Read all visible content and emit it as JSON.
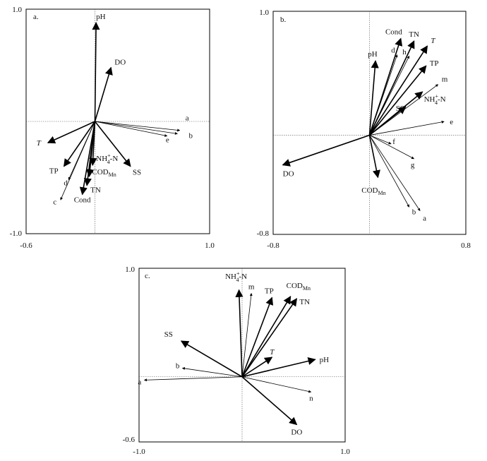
{
  "chart_data": [
    {
      "type": "scatter",
      "title": "a.",
      "xlim": [
        -0.6,
        1.0
      ],
      "ylim": [
        -1.0,
        1.0
      ],
      "x_ticks": [
        "-0.6",
        "1.0"
      ],
      "y_ticks": [
        "1.0",
        "-1.0"
      ],
      "grid": false,
      "vectors": [
        {
          "label": "pH",
          "x": 0.01,
          "y": 0.88,
          "type": "env"
        },
        {
          "label": "DO",
          "x": 0.14,
          "y": 0.48,
          "type": "env"
        },
        {
          "label": "T",
          "x": -0.41,
          "y": -0.19,
          "type": "env",
          "italic": true
        },
        {
          "label": "TP",
          "x": -0.27,
          "y": -0.4,
          "type": "env"
        },
        {
          "label": "Cond",
          "x": -0.11,
          "y": -0.65,
          "type": "env"
        },
        {
          "label": "TN",
          "x": -0.07,
          "y": -0.57,
          "type": "env"
        },
        {
          "label": "CODMn",
          "x": -0.05,
          "y": -0.49,
          "type": "env",
          "sub": "Mn"
        },
        {
          "label": "NH4+-N",
          "x": -0.02,
          "y": -0.39,
          "type": "env"
        },
        {
          "label": "SS",
          "x": 0.31,
          "y": -0.4,
          "type": "env"
        },
        {
          "label": "a",
          "x": 0.74,
          "y": -0.08,
          "type": "species"
        },
        {
          "label": "b",
          "x": 0.72,
          "y": -0.11,
          "type": "species"
        },
        {
          "label": "e",
          "x": 0.63,
          "y": -0.13,
          "type": "species"
        },
        {
          "label": "d",
          "x": -0.23,
          "y": -0.52,
          "type": "species"
        },
        {
          "label": "c",
          "x": -0.3,
          "y": -0.7,
          "type": "species"
        }
      ]
    },
    {
      "type": "scatter",
      "title": "b.",
      "xlim": [
        -0.8,
        0.8
      ],
      "ylim": [
        -0.8,
        1.0
      ],
      "x_ticks": [
        "-0.8",
        "0.8"
      ],
      "y_ticks": [
        "1.0",
        "-0.8"
      ],
      "grid": false,
      "vectors": [
        {
          "label": "Cond",
          "x": 0.26,
          "y": 0.78,
          "type": "env"
        },
        {
          "label": "TN",
          "x": 0.37,
          "y": 0.76,
          "type": "env"
        },
        {
          "label": "T",
          "x": 0.48,
          "y": 0.72,
          "type": "env",
          "italic": true
        },
        {
          "label": "pH",
          "x": 0.05,
          "y": 0.6,
          "type": "env"
        },
        {
          "label": "TP",
          "x": 0.47,
          "y": 0.56,
          "type": "env"
        },
        {
          "label": "NH4+-N",
          "x": 0.44,
          "y": 0.35,
          "type": "env"
        },
        {
          "label": "SS",
          "x": 0.3,
          "y": 0.23,
          "type": "env"
        },
        {
          "label": "DO",
          "x": -0.72,
          "y": -0.24,
          "type": "env"
        },
        {
          "label": "CODMn",
          "x": 0.07,
          "y": -0.34,
          "type": "env",
          "sub": "Mn"
        },
        {
          "label": "d",
          "x": 0.23,
          "y": 0.65,
          "type": "species"
        },
        {
          "label": "h",
          "x": 0.33,
          "y": 0.64,
          "type": "species"
        },
        {
          "label": "m",
          "x": 0.57,
          "y": 0.41,
          "type": "species"
        },
        {
          "label": "e",
          "x": 0.62,
          "y": 0.11,
          "type": "species"
        },
        {
          "label": "f",
          "x": 0.18,
          "y": -0.07,
          "type": "species"
        },
        {
          "label": "g",
          "x": 0.37,
          "y": -0.19,
          "type": "species"
        },
        {
          "label": "b",
          "x": 0.33,
          "y": -0.58,
          "type": "species"
        },
        {
          "label": "a",
          "x": 0.42,
          "y": -0.61,
          "type": "species"
        }
      ]
    },
    {
      "type": "scatter",
      "title": "c.",
      "xlim": [
        -1.0,
        1.0
      ],
      "ylim": [
        -0.6,
        1.0
      ],
      "x_ticks": [
        "-1.0",
        "1.0"
      ],
      "y_ticks": [
        "1.0",
        "-0.6"
      ],
      "grid": false,
      "vectors": [
        {
          "label": "NH4+-N",
          "x": -0.03,
          "y": 0.8,
          "type": "env"
        },
        {
          "label": "m",
          "x": 0.09,
          "y": 0.77,
          "type": "species"
        },
        {
          "label": "TP",
          "x": 0.29,
          "y": 0.73,
          "type": "env"
        },
        {
          "label": "CODMn",
          "x": 0.47,
          "y": 0.74,
          "type": "env",
          "sub": "Mn"
        },
        {
          "label": "TN",
          "x": 0.53,
          "y": 0.72,
          "type": "env"
        },
        {
          "label": "SS",
          "x": -0.59,
          "y": 0.33,
          "type": "env"
        },
        {
          "label": "b",
          "x": -0.58,
          "y": 0.08,
          "type": "species"
        },
        {
          "label": "a",
          "x": -0.95,
          "y": -0.03,
          "type": "species"
        },
        {
          "label": "T",
          "x": 0.29,
          "y": 0.18,
          "type": "env",
          "italic": true
        },
        {
          "label": "pH",
          "x": 0.71,
          "y": 0.16,
          "type": "env"
        },
        {
          "label": "n",
          "x": 0.67,
          "y": -0.14,
          "type": "species"
        },
        {
          "label": "DO",
          "x": 0.53,
          "y": -0.44,
          "type": "env"
        }
      ]
    }
  ]
}
